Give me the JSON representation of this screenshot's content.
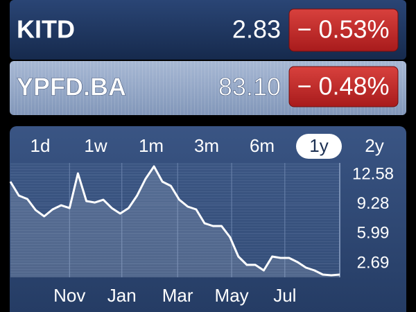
{
  "stocks": [
    {
      "symbol": "KITD",
      "price": "2.83",
      "change": "− 0.53%"
    },
    {
      "symbol": "YPFD.BA",
      "price": "83.10",
      "change": "− 0.48%"
    }
  ],
  "ranges": [
    "1d",
    "1w",
    "1m",
    "3m",
    "6m",
    "1y",
    "2y"
  ],
  "selected_range": "1y",
  "chart_data": {
    "type": "line",
    "values": [
      11.81,
      10.26,
      9.88,
      8.64,
      7.95,
      8.72,
      9.18,
      8.87,
      12.73,
      9.65,
      9.49,
      9.8,
      8.87,
      8.26,
      8.87,
      10.26,
      12.12,
      13.51,
      11.81,
      11.34,
      9.8,
      9.03,
      8.72,
      7.17,
      6.87,
      6.87,
      5.63,
      3.47,
      2.54,
      2.54,
      1.92,
      3.47,
      3.31,
      3.31,
      2.85,
      2.23,
      1.92,
      1.46,
      1.38,
      1.46
    ],
    "xlim": [
      0,
      39
    ],
    "xticks": [
      {
        "value": 7,
        "label": "Nov"
      },
      {
        "value": 13.2,
        "label": "Jan"
      },
      {
        "value": 19.8,
        "label": "Mar"
      },
      {
        "value": 26.2,
        "label": "May"
      },
      {
        "value": 32.5,
        "label": "Jul"
      }
    ],
    "ylim": [
      1.15,
      13.9
    ],
    "yticks": [
      12.58,
      9.28,
      5.99,
      2.69
    ],
    "color": "#ffffff"
  }
}
